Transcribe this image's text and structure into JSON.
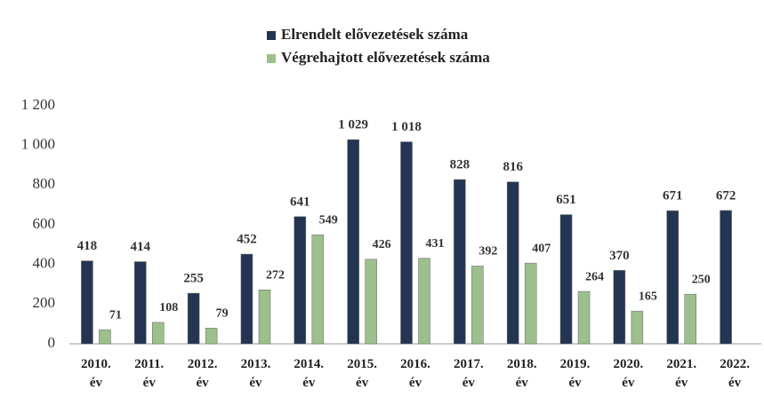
{
  "chart_data": {
    "type": "bar",
    "categories": [
      "2010. év",
      "2011. év",
      "2012. év",
      "2013. év",
      "2014. év",
      "2015. év",
      "2016. év",
      "2017. év",
      "2018. év",
      "2019. év",
      "2020. év",
      "2021. év",
      "2022. év"
    ],
    "series": [
      {
        "name": "Elrendelt elővezetések száma",
        "color": "#243553",
        "values": [
          418,
          414,
          255,
          452,
          641,
          1029,
          1018,
          828,
          816,
          651,
          370,
          671,
          672
        ],
        "value_labels": [
          "418",
          "414",
          "255",
          "452",
          "641",
          "1 029",
          "1 018",
          "828",
          "816",
          "651",
          "370",
          "671",
          "672"
        ]
      },
      {
        "name": "Végrehajtott elővezetések száma",
        "color": "#9dbf8c",
        "values": [
          71,
          108,
          79,
          272,
          549,
          426,
          431,
          392,
          407,
          264,
          165,
          250,
          null
        ]
      }
    ],
    "ylim": [
      0,
      1200
    ],
    "yticks": [
      0,
      200,
      400,
      600,
      800,
      {
        "value": 1000,
        "label": "1 000"
      },
      {
        "value": 1200,
        "label": "1 200"
      }
    ],
    "legend": "top"
  }
}
